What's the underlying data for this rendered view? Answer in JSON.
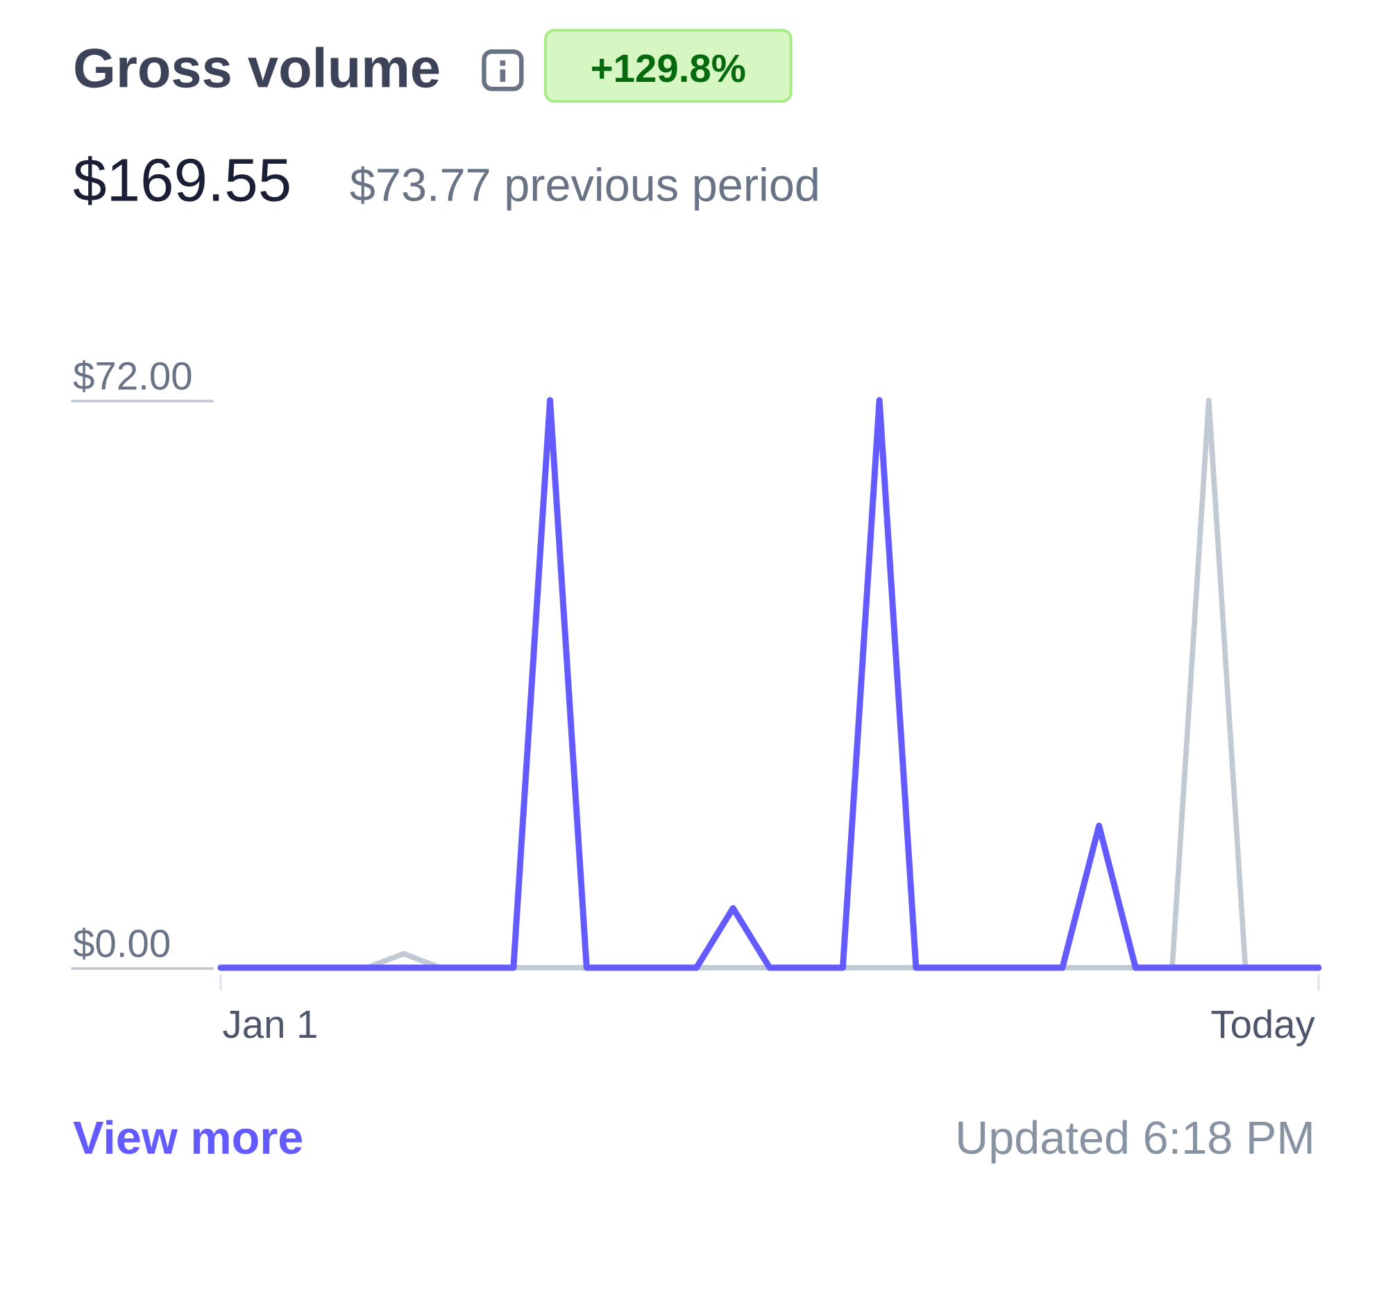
{
  "header": {
    "title": "Gross volume",
    "badge": "+129.8%",
    "amount": "$169.55",
    "previous": "$73.77 previous period"
  },
  "chart_data": {
    "type": "line",
    "categories": [
      "Jan 1",
      null,
      null,
      null,
      null,
      null,
      null,
      null,
      null,
      null,
      null,
      null,
      null,
      null,
      null,
      null,
      null,
      null,
      null,
      null,
      null,
      null,
      null,
      null,
      null,
      null,
      null,
      null,
      null,
      null,
      "Today"
    ],
    "series": [
      {
        "color": "#c1c9d2",
        "values": [
          0,
          0,
          0,
          0,
          0,
          1.77,
          0,
          0,
          0,
          0,
          0,
          0,
          0,
          0,
          0,
          0,
          0,
          0,
          0,
          0,
          0,
          0,
          0,
          0,
          0,
          0,
          0,
          72,
          0,
          0,
          0
        ]
      },
      {
        "color": "#635bff",
        "values": [
          0,
          0,
          0,
          0,
          0,
          0,
          0,
          0,
          0,
          72,
          0,
          0,
          0,
          0,
          7.55,
          0,
          0,
          0,
          72,
          0,
          0,
          0,
          0,
          0,
          18,
          0,
          0,
          0,
          0,
          0,
          0
        ]
      }
    ],
    "ylim": [
      0,
      72
    ],
    "yticks": [
      {
        "value": 0,
        "label": "$0.00"
      },
      {
        "value": 72,
        "label": "$72.00"
      }
    ],
    "grid": false
  },
  "footer": {
    "link": "View more",
    "updated": "Updated 6:18 PM"
  }
}
